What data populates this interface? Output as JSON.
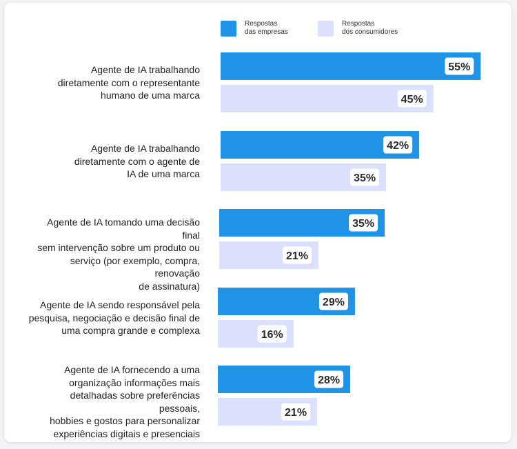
{
  "chart_data": {
    "type": "bar",
    "orientation": "horizontal",
    "categories": [
      "Agente de IA trabalhando diretamente com o representante humano de uma marca",
      "Agente de IA trabalhando diretamente com o agente de IA de uma marca",
      "Agente de IA tomando uma decisão final sem intervenção sobre um produto ou serviço (por exemplo, compra, renovação de assinatura)",
      "Agente de IA sendo responsável pela pesquisa, negociação e decisão final de uma compra grande e complexa",
      "Agente de IA fornecendo a uma organização informações mais detalhadas sobre preferências pessoais, hobbies e gostos para personalizar experiências digitais e presenciais"
    ],
    "category_lines": [
      [
        "Agente de IA trabalhando",
        "diretamente com o representante",
        "humano de uma marca"
      ],
      [
        "Agente de IA trabalhando",
        "diretamente com o agente de",
        "IA de uma marca"
      ],
      [
        "Agente de IA tomando uma decisão final",
        "sem intervenção sobre um produto ou",
        "serviço (por exemplo, compra, renovação",
        "de assinatura)"
      ],
      [
        "Agente de IA sendo responsável pela",
        "pesquisa, negociação e decisão final de",
        "uma compra grande e complexa"
      ],
      [
        "Agente de IA fornecendo a uma",
        "organização informações mais",
        "detalhadas sobre preferências pessoais,",
        "hobbies e gostos para personalizar",
        "experiências digitais e presenciais"
      ]
    ],
    "series": [
      {
        "name": "Respostas das empresas",
        "legend_lines": [
          "Respostas",
          "das empresas"
        ],
        "color": "#1f93e6",
        "values": [
          55,
          42,
          35,
          29,
          28
        ]
      },
      {
        "name": "Respostas dos consumidores",
        "legend_lines": [
          "Respostas",
          "dos consumidores"
        ],
        "color": "#dbe0fc",
        "values": [
          45,
          35,
          21,
          16,
          21
        ]
      }
    ],
    "value_suffix": "%",
    "grid": false,
    "legend_position": "top",
    "title": "",
    "xlabel": "",
    "ylabel": ""
  }
}
